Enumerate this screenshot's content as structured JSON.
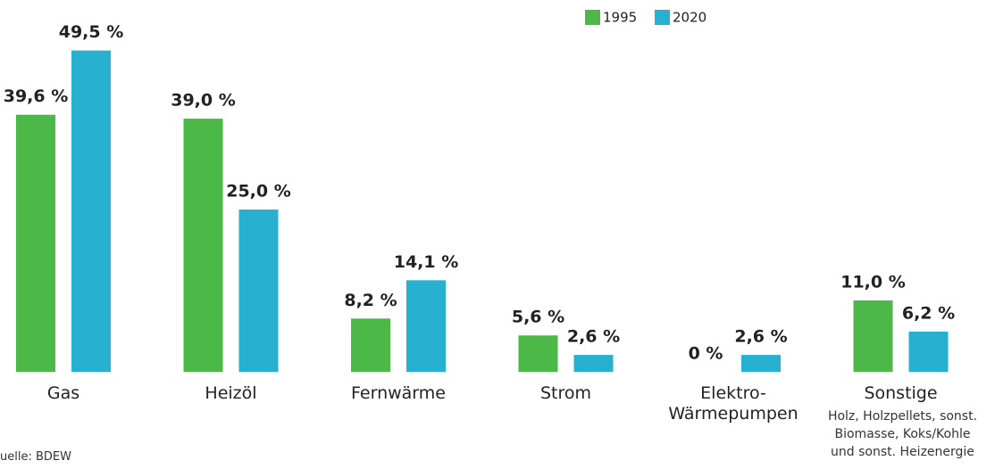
{
  "chart_data": {
    "type": "bar",
    "categories": [
      "Gas",
      "Heizöl",
      "Fernwärme",
      "Strom",
      "Elektro-\nWärmepumpen",
      "Sonstige"
    ],
    "category_note": "Holz, Holzpellets, sonst.\nBiomasse, Koks/Kohle\nund sonst. Heizenergie",
    "series": [
      {
        "name": "1995",
        "color": "#4cb848",
        "values": [
          39.6,
          39.0,
          8.2,
          5.6,
          0,
          11.0
        ],
        "value_labels": [
          "39,6 %",
          "39,0 %",
          "8,2 %",
          "5,6 %",
          "0 %",
          "11,0 %"
        ]
      },
      {
        "name": "2020",
        "color": "#27b0d0",
        "values": [
          49.5,
          25.0,
          14.1,
          2.6,
          2.6,
          6.2
        ],
        "value_labels": [
          "49,5 %",
          "25,0 %",
          "14,1 %",
          "2,6 %",
          "2,6 %",
          "6,2 %"
        ]
      }
    ],
    "ylim": [
      0,
      50
    ],
    "source": "uelle: BDEW"
  }
}
